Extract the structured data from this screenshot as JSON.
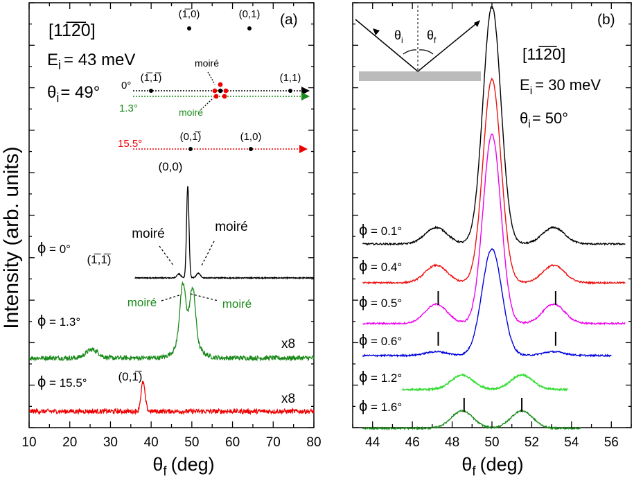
{
  "figure": {
    "ylabel": "Intensity (arb. units)"
  },
  "chart_data": [
    {
      "panel_label": "(a)",
      "type": "line",
      "xlabel_symbol": "θ",
      "xlabel_sub": "f",
      "xlabel_unit": "(deg)",
      "xlim": [
        10,
        80
      ],
      "xticks": [
        10,
        20,
        30,
        40,
        50,
        60,
        70,
        80
      ],
      "inset": {
        "direction": "[11̅2̅0]",
        "energy": "E",
        "energy_sub": "i",
        "energy_value": "= 43 meV",
        "angle": "θ",
        "angle_sub": "i",
        "angle_value": "= 49°",
        "top_points": [
          {
            "label": "(1̅,0)",
            "qx": 0.4
          },
          {
            "label": "(0,1)",
            "qx": 2.1
          }
        ],
        "rows": [
          {
            "angle": "0°",
            "color": "#000000",
            "points": [
              {
                "label": "(1̅,1̅)",
                "qx": -1.3
              },
              {
                "label": "(1,1)",
                "qx": 3.8
              }
            ]
          },
          {
            "angle": "1.3°",
            "color": "#1a8a1a",
            "points": []
          },
          {
            "angle": "15.5°",
            "color": "#ee0000",
            "points": [
              {
                "label": "(0,1̅)",
                "qx": 0.4
              },
              {
                "label": "(1,0)",
                "qx": 2.1
              }
            ]
          }
        ],
        "moire_labels": [
          "moiré",
          "moiré"
        ]
      },
      "series": [
        {
          "name": "φ = 0°",
          "phi": "0°",
          "color": "#000000",
          "scale": "",
          "baseline": 0,
          "peaks": [
            {
              "x": 25.5,
              "height": 0.09,
              "width": 0.9
            },
            {
              "x": 46.8,
              "height": 0.05,
              "width": 0.5
            },
            {
              "x": 49.0,
              "height": 1.2,
              "width": 0.3
            },
            {
              "x": 51.6,
              "height": 0.06,
              "width": 0.5
            }
          ],
          "noise": 0.006,
          "annotations": [
            "(0,0)",
            "moiré",
            "moiré",
            "(1̅,1̅)"
          ]
        },
        {
          "name": "φ = 1.3°",
          "phi": "1.3°",
          "color": "#1a8a1a",
          "scale": "x8",
          "baseline": -1.05,
          "peaks": [
            {
              "x": 25.5,
              "height": 0.11,
              "width": 1.5
            },
            {
              "x": 47.8,
              "height": 0.75,
              "width": 0.75
            },
            {
              "x": 50.2,
              "height": 0.7,
              "width": 0.7
            },
            {
              "x": 49.0,
              "height": 0.25,
              "width": 2.5
            }
          ],
          "noise": 0.03,
          "annotations": [
            "moiré",
            "moiré"
          ]
        },
        {
          "name": "φ = 15.5°",
          "phi": "15.5°",
          "color": "#ee0000",
          "scale": "x8",
          "baseline": -1.75,
          "peaks": [
            {
              "x": 38.0,
              "height": 0.38,
              "width": 0.5
            }
          ],
          "noise": 0.03,
          "annotations": [
            "(0,1̅)"
          ]
        }
      ]
    },
    {
      "panel_label": "(b)",
      "type": "line",
      "xlabel_symbol": "θ",
      "xlabel_sub": "f",
      "xlabel_unit": "(deg)",
      "xlim": [
        43,
        57
      ],
      "xticks": [
        44,
        46,
        48,
        50,
        52,
        54,
        56
      ],
      "inset": {
        "direction": "[11̅2̅0]",
        "energy": "E",
        "energy_sub": "i",
        "energy_value": "= 30 meV",
        "angle": "θ",
        "angle_sub": "i",
        "angle_value": "= 50°",
        "theta_i": "θ",
        "theta_i_sub": "i",
        "theta_f": "θ",
        "theta_f_sub": "f"
      },
      "markers": [
        {
          "x": 47.3,
          "after_series": 1
        },
        {
          "x": 53.2,
          "after_series": 1
        },
        {
          "x": 47.3,
          "after_series": 2
        },
        {
          "x": 53.2,
          "after_series": 2
        },
        {
          "x": 48.6,
          "after_series": 4
        },
        {
          "x": 51.5,
          "after_series": 4
        }
      ],
      "series": [
        {
          "name": "φ = 0.1°",
          "phi": "0.1°",
          "color": "#000000",
          "baseline": 0,
          "x_start": 43.5,
          "x_end": 56.7,
          "peak_height": 2.45,
          "peak_width": 0.45,
          "side_x": [
            47.2,
            53.1
          ],
          "side_height": 0.17
        },
        {
          "name": "φ = 0.4°",
          "phi": "0.4°",
          "color": "#ee1111",
          "baseline": -0.4,
          "x_start": 43.5,
          "x_end": 56.7,
          "peak_height": 2.1,
          "peak_width": 0.45,
          "side_x": [
            47.2,
            53.1
          ],
          "side_height": 0.18
        },
        {
          "name": "φ = 0.5°",
          "phi": "0.5°",
          "color": "#ee00ee",
          "baseline": -0.82,
          "x_start": 43.5,
          "x_end": 56.7,
          "peak_height": 1.95,
          "peak_width": 0.45,
          "side_x": [
            47.2,
            53.1
          ],
          "side_height": 0.2
        },
        {
          "name": "φ = 0.6°",
          "phi": "0.6°",
          "color": "#0000dd",
          "baseline": -1.15,
          "x_start": 43.5,
          "x_end": 56.0,
          "peak_height": 1.1,
          "peak_width": 0.5,
          "side_x": [
            47.2,
            53.1
          ],
          "side_height": 0.04
        },
        {
          "name": "φ = 1.2°",
          "phi": "1.2°",
          "color": "#33dd33",
          "baseline": -1.5,
          "x_start": 45.5,
          "x_end": 53.8,
          "peak_height": 0.0,
          "peak_width": 0.5,
          "side_x": [
            48.5,
            51.5
          ],
          "side_height": 0.15
        },
        {
          "name": "φ = 1.6°",
          "phi": "1.6°",
          "color": "#1a8a1a",
          "baseline": -1.9,
          "x_start": 43.5,
          "x_end": 54.5,
          "peak_height": 0.0,
          "peak_width": 0.5,
          "side_x": [
            48.5,
            51.5
          ],
          "side_height": 0.18
        }
      ]
    }
  ]
}
